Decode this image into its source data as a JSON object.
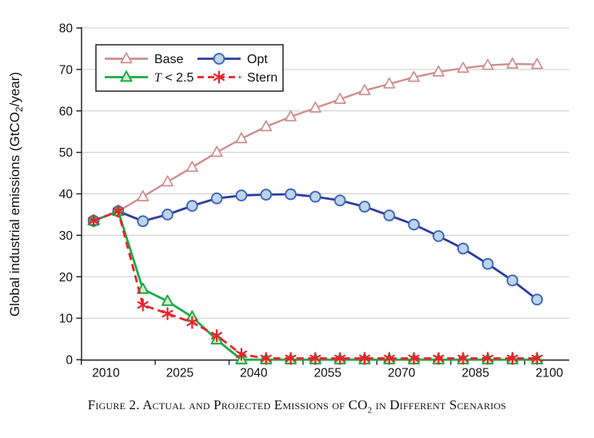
{
  "figure": {
    "y_axis_label_parts": {
      "pre": "Global industrial emissions (GtCO",
      "sub": "2",
      "post": "/year)"
    },
    "caption_parts": {
      "pre": "Figure 2. Actual and Projected Emissions of CO",
      "sub": "2",
      "post": " in Different Scenarios"
    }
  },
  "chart_data": {
    "type": "line",
    "title": "",
    "xlabel": "",
    "ylabel": "Global industrial emissions (GtCO2/year)",
    "caption": "Figure 2. Actual and Projected Emissions of CO2 in Different Scenarios",
    "x": [
      2010,
      2015,
      2020,
      2025,
      2030,
      2035,
      2040,
      2045,
      2050,
      2055,
      2060,
      2065,
      2070,
      2075,
      2080,
      2085,
      2090,
      2095,
      2100
    ],
    "series": [
      {
        "name": "Base",
        "color": "#cd8e8e",
        "marker": "triangle-open",
        "marker_fill": "#ffffff",
        "values": [
          33.5,
          35.8,
          39.3,
          42.9,
          46.4,
          50.0,
          53.3,
          56.2,
          58.6,
          60.7,
          62.8,
          64.9,
          66.5,
          68.1,
          69.4,
          70.3,
          71.0,
          71.3,
          71.2
        ]
      },
      {
        "name": "Opt",
        "color": "#2e3c9e",
        "marker": "circle",
        "marker_fill": "#bdd4ee",
        "marker_stroke": "#4368b5",
        "values": [
          33.5,
          35.8,
          33.4,
          35.0,
          37.1,
          38.9,
          39.6,
          39.8,
          39.9,
          39.3,
          38.4,
          36.9,
          34.8,
          32.6,
          29.8,
          26.8,
          23.1,
          19.1,
          14.5
        ]
      },
      {
        "name": "T < 2.5",
        "color": "#18ac49",
        "marker": "triangle",
        "marker_fill": "#d8edca",
        "italic_first": true,
        "values": [
          33.5,
          35.8,
          17.0,
          14.1,
          10.3,
          4.8,
          0,
          0,
          0,
          0,
          0,
          0,
          0,
          0,
          0,
          0,
          0,
          0,
          0
        ]
      },
      {
        "name": "Stern",
        "color": "#e8232a",
        "marker": "star6",
        "dash": "9 5.5",
        "values": [
          33.5,
          35.8,
          13.2,
          11.1,
          9.0,
          5.8,
          1.3,
          0.3,
          0.3,
          0.3,
          0.3,
          0.3,
          0.3,
          0.3,
          0.3,
          0.3,
          0.3,
          0.3,
          0.3
        ]
      }
    ],
    "ylim": [
      0,
      80
    ],
    "y_ticks": [
      0,
      10,
      20,
      30,
      40,
      50,
      60,
      70,
      80
    ],
    "x_tick_labels": [
      2010,
      2025,
      2040,
      2055,
      2070,
      2085,
      2100
    ],
    "x_minor_ticks": [
      2005,
      2020,
      2035,
      2050,
      2065,
      2080,
      2095
    ],
    "x_plot_offset_years": -2.5,
    "grid": "horizontal",
    "legend_position": "top-left"
  }
}
